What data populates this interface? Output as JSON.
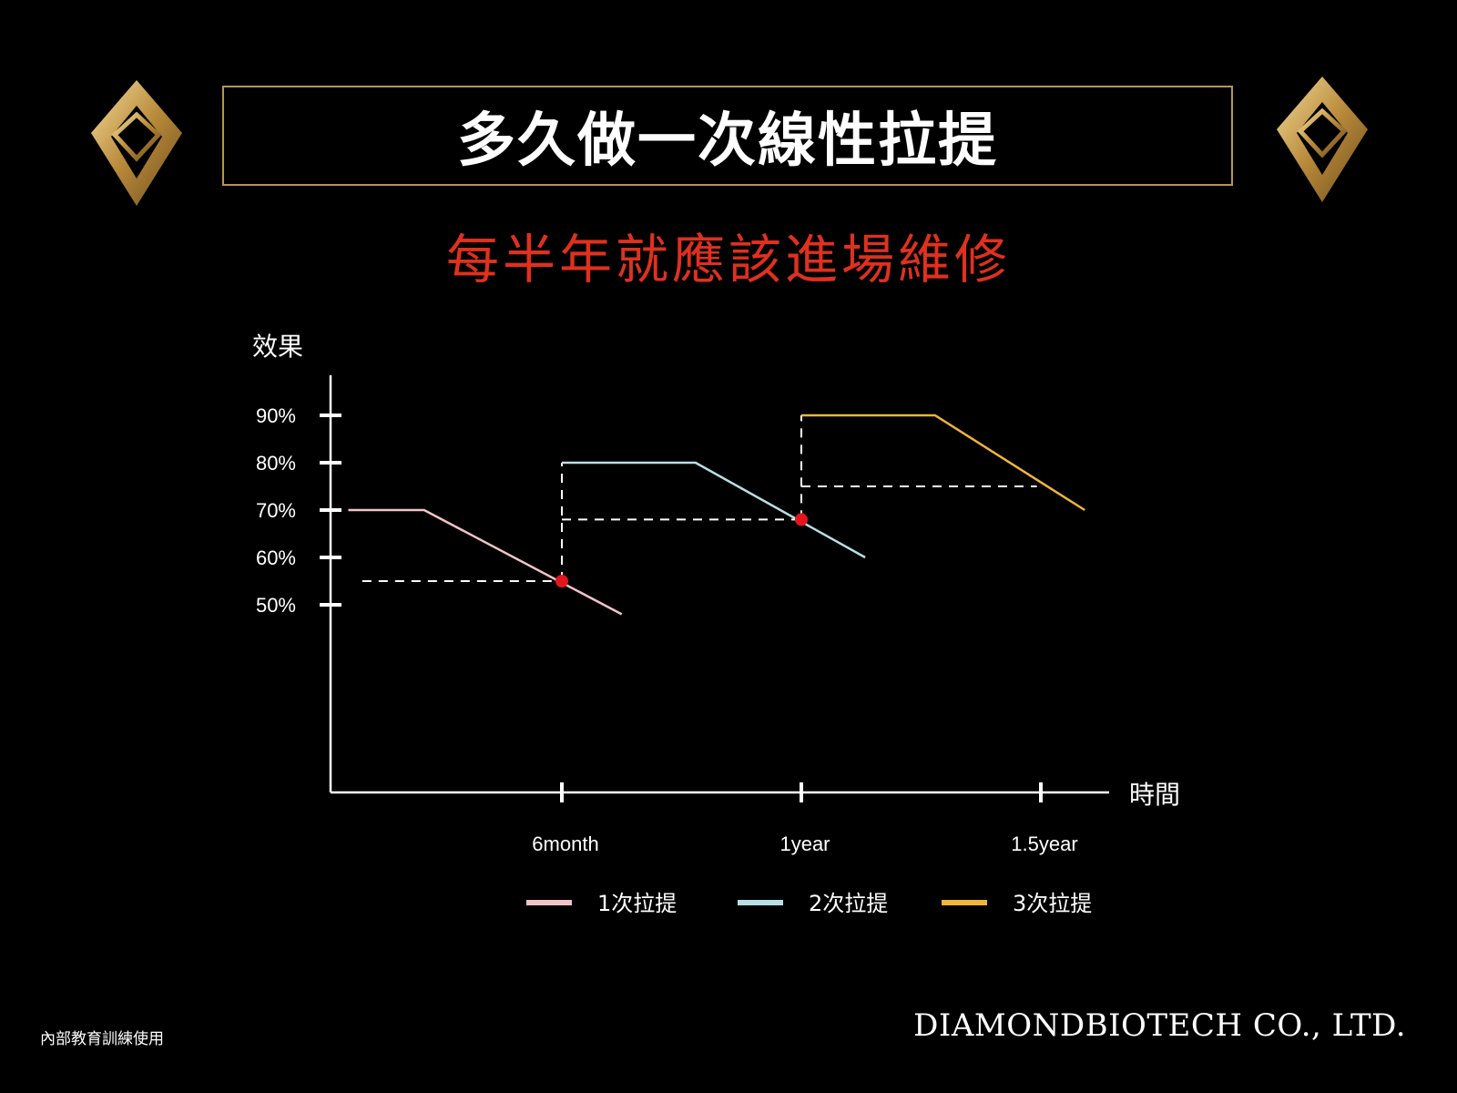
{
  "header": {
    "title": "多久做一次線性拉提",
    "subtitle": "每半年就應該進場維修"
  },
  "footer": {
    "left_text": "內部教育訓練使用",
    "company": "DIAMONDBIOTECH CO., LTD."
  },
  "colors": {
    "background": "#000000",
    "title_border": "#b8964e",
    "subtitle": "#e0301e",
    "gold": "#c9a24f",
    "axis": "#ffffff",
    "marker": "#e3161b"
  },
  "icons": [
    "diamond-logo-left-icon",
    "diamond-logo-right-icon"
  ],
  "chart_data": {
    "type": "line",
    "ylabel": "效果",
    "xlabel": "時間",
    "y_ticks": [
      "90%",
      "80%",
      "70%",
      "60%",
      "50%"
    ],
    "y_tick_values": [
      90,
      80,
      70,
      60,
      50
    ],
    "x_ticks": [
      "6month",
      "1year",
      "1.5year"
    ],
    "x_tick_values": [
      6,
      12,
      18
    ],
    "xlim": [
      0,
      19.3
    ],
    "ylim": [
      50,
      90
    ],
    "grid": false,
    "legend_position": "bottom",
    "series": [
      {
        "name": "1次拉提",
        "color": "#f2c4c8",
        "x": [
          0.65,
          2.55,
          7.5
        ],
        "y": [
          70,
          70,
          48
        ]
      },
      {
        "name": "2次拉提",
        "color": "#b8dfe6",
        "x": [
          6.0,
          9.35,
          13.6
        ],
        "y": [
          80,
          80,
          60
        ]
      },
      {
        "name": "3次拉提",
        "color": "#f2b53a",
        "x": [
          12.0,
          15.35,
          19.1
        ],
        "y": [
          90,
          90,
          70
        ]
      }
    ],
    "markers": [
      {
        "x": 6.0,
        "y": 55
      },
      {
        "x": 12.0,
        "y": 68
      }
    ],
    "reference_lines": [
      {
        "type": "horizontal",
        "y": 55,
        "x_from": 1.0,
        "x_to": 6.0
      },
      {
        "type": "vertical",
        "x": 6.0,
        "y_from": 55,
        "y_to": 80
      },
      {
        "type": "horizontal",
        "y": 68,
        "x_from": 6.0,
        "x_to": 12.0
      },
      {
        "type": "vertical",
        "x": 12.0,
        "y_from": 68,
        "y_to": 90
      },
      {
        "type": "horizontal",
        "y": 75,
        "x_from": 12.0,
        "x_to": 17.9
      }
    ]
  }
}
